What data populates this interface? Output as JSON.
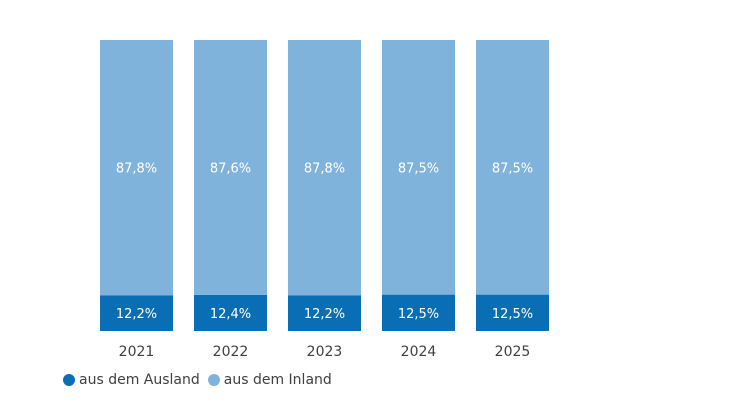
{
  "chart_data": {
    "type": "bar",
    "stacked": true,
    "normalized_percent": true,
    "categories": [
      "2021",
      "2022",
      "2023",
      "2024",
      "2025"
    ],
    "series": [
      {
        "name": "aus dem Ausland",
        "color": "#0a6eb4",
        "values": [
          12.2,
          12.4,
          12.2,
          12.5,
          12.5
        ],
        "labels": [
          "12,2%",
          "12,4%",
          "12,2%",
          "12,5%",
          "12,5%"
        ]
      },
      {
        "name": "aus dem Inland",
        "color": "#7fb3db",
        "values": [
          87.8,
          87.6,
          87.8,
          87.5,
          87.5
        ],
        "labels": [
          "87,8%",
          "87,6%",
          "87,8%",
          "87,5%",
          "87,5%"
        ]
      }
    ],
    "ylim": [
      0,
      100
    ],
    "grid": false,
    "legend_position": "bottom-left",
    "title": "",
    "xlabel": "",
    "ylabel": ""
  }
}
